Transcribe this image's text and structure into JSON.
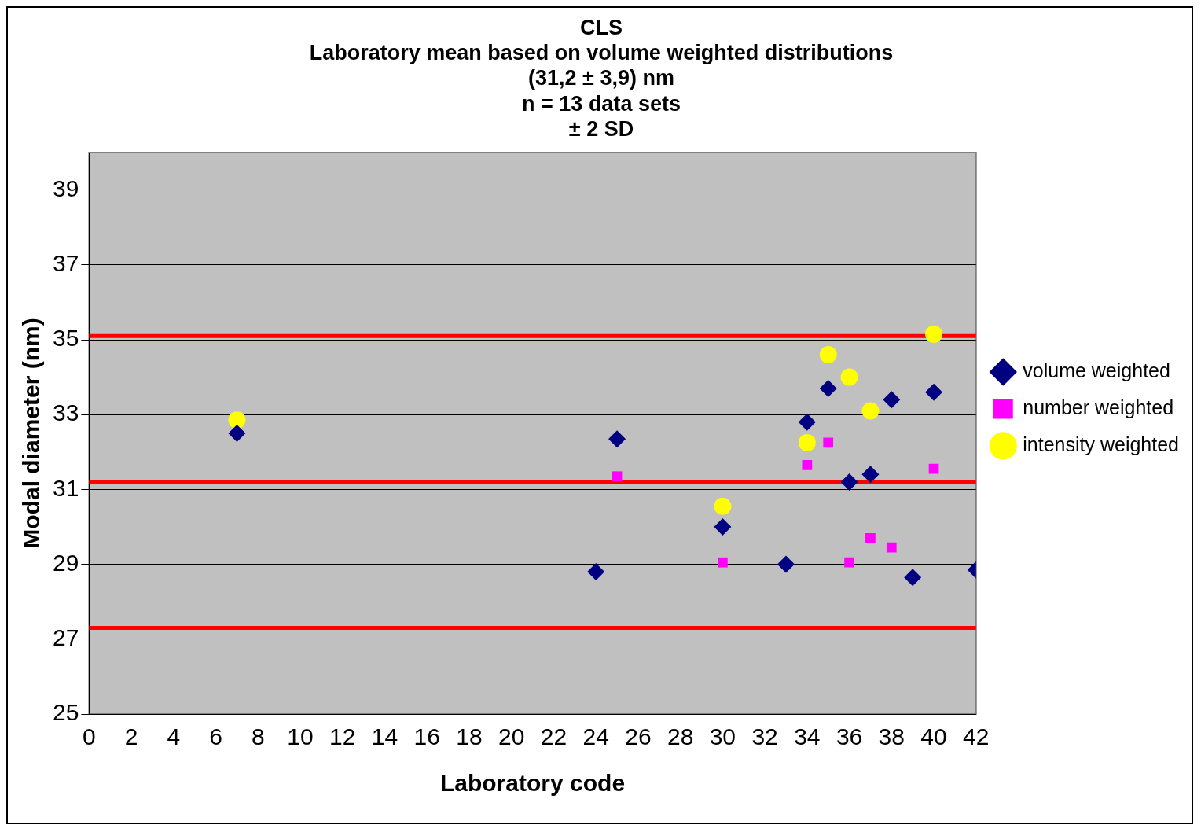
{
  "chart_data": {
    "type": "scatter",
    "title": "CLS\nLaboratory mean based on volume weighted distributions\n(31,2 ± 3,9) nm\nn = 13 data sets\n± 2 SD",
    "xlabel": "Laboratory code",
    "ylabel": "Modal diameter (nm)",
    "xlim": [
      0,
      42
    ],
    "xticks": [
      0,
      2,
      4,
      6,
      8,
      10,
      12,
      14,
      16,
      18,
      20,
      22,
      24,
      26,
      28,
      30,
      32,
      34,
      36,
      38,
      40,
      42
    ],
    "ylim": [
      25,
      40
    ],
    "yticks": [
      25,
      27,
      29,
      31,
      33,
      35,
      37,
      39
    ],
    "grid": "y",
    "legend": "right",
    "series": [
      {
        "name": "volume weighted",
        "color": "#000080",
        "marker": "diamond",
        "x": [
          7,
          24,
          25,
          30,
          33,
          34,
          35,
          36,
          37,
          38,
          39,
          40,
          42
        ],
        "values": [
          32.5,
          28.8,
          32.35,
          30.0,
          29.0,
          32.8,
          33.7,
          31.2,
          31.4,
          33.4,
          28.65,
          33.6,
          28.85
        ]
      },
      {
        "name": "number weighted",
        "color": "#ff00ff",
        "marker": "square",
        "x": [
          25,
          30,
          34,
          35,
          36,
          37,
          38,
          40
        ],
        "values": [
          31.35,
          29.05,
          31.65,
          32.25,
          29.05,
          29.7,
          29.45,
          31.55
        ]
      },
      {
        "name": "intensity weighted",
        "color": "#ffff00",
        "marker": "circle",
        "x": [
          7,
          30,
          34,
          35,
          36,
          37,
          40
        ],
        "values": [
          32.85,
          30.55,
          32.25,
          34.6,
          34.0,
          33.1,
          35.15
        ]
      }
    ],
    "ref_lines": [
      {
        "axis": "y",
        "value": 35.1,
        "color": "#ff0000"
      },
      {
        "axis": "y",
        "value": 31.2,
        "color": "#ff0000"
      },
      {
        "axis": "y",
        "value": 27.3,
        "color": "#ff0000"
      }
    ]
  }
}
